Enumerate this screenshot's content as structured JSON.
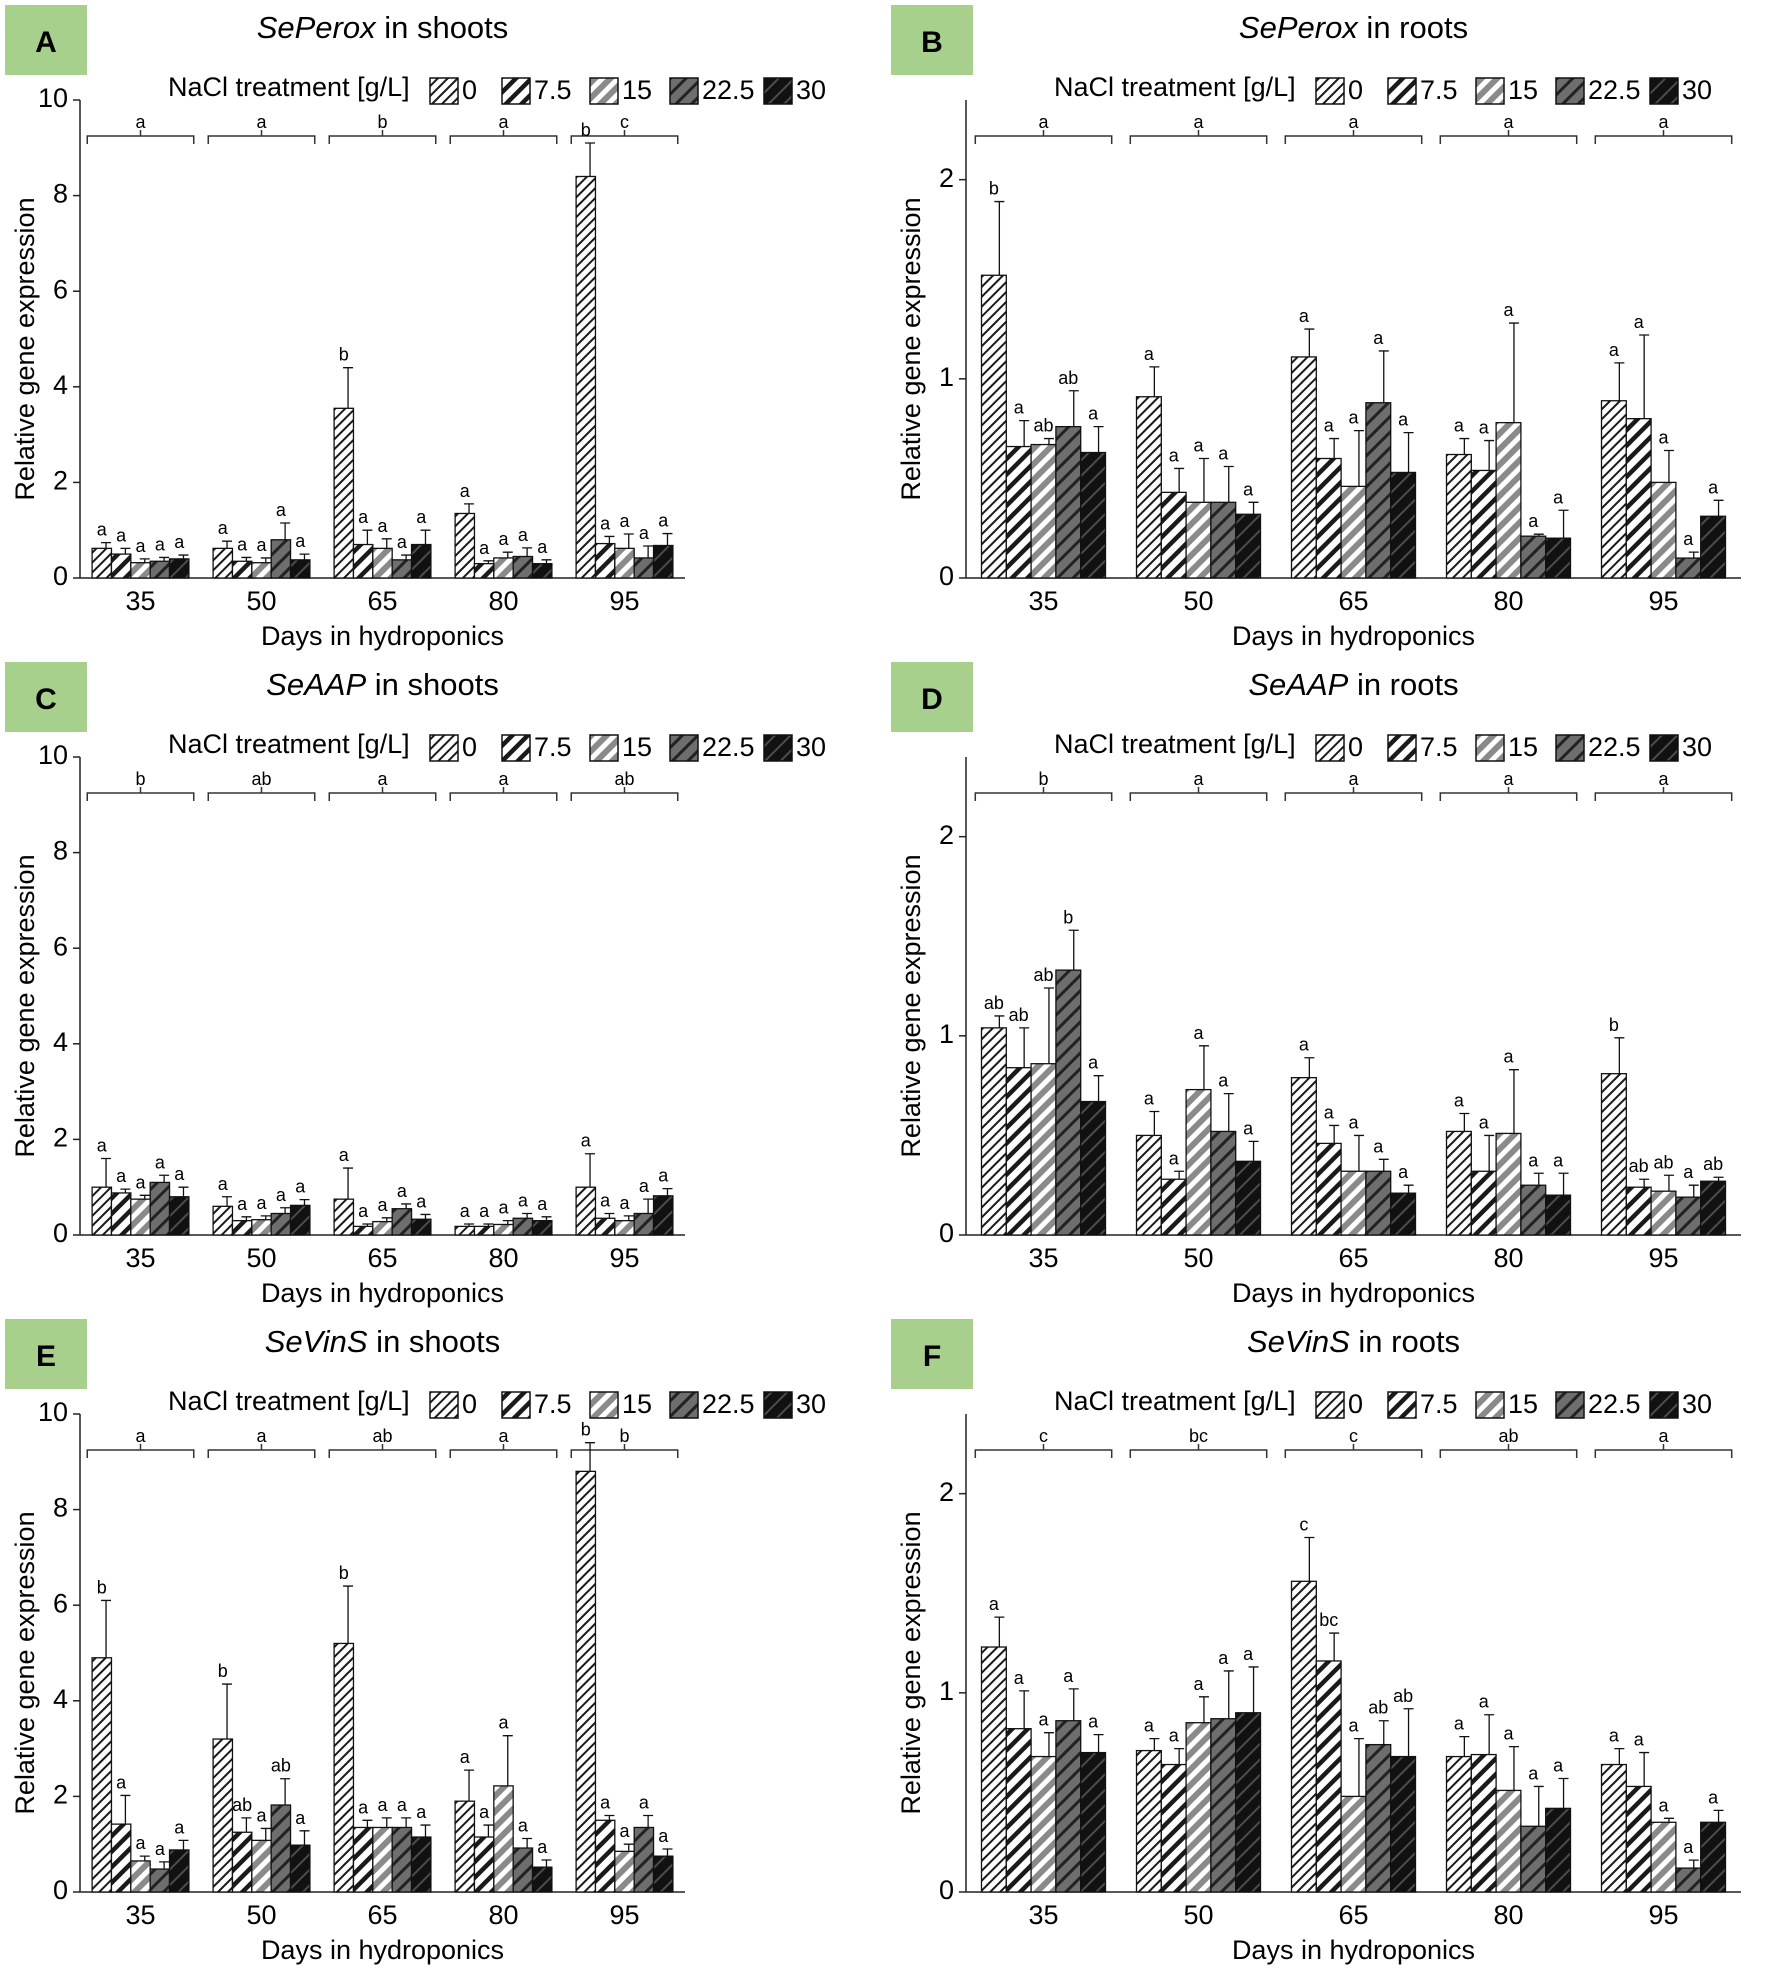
{
  "figure": {
    "x_label": "Days in hydroponics",
    "y_label": "Relative gene expression",
    "legend_title": "NaCl treatment [g/L]",
    "treatments": [
      "0",
      "7.5",
      "15",
      "22.5",
      "30"
    ],
    "days": [
      "35",
      "50",
      "65",
      "80",
      "95"
    ],
    "panel_label_color": "#a8d08d"
  },
  "chart_data": [
    {
      "panel": "A",
      "type": "bar",
      "gene": "SePerox",
      "tissue": "in shoots",
      "categories": [
        "35",
        "50",
        "65",
        "80",
        "95"
      ],
      "ylim": [
        0,
        10
      ],
      "yticks": [
        "0",
        "2",
        "4",
        "6",
        "8",
        "10"
      ],
      "day_letters": [
        "a",
        "a",
        "b",
        "a",
        "c"
      ],
      "series": [
        {
          "name": "0",
          "values": [
            0.62,
            0.62,
            3.55,
            1.35,
            8.4
          ],
          "errors": [
            0.12,
            0.15,
            0.85,
            0.2,
            0.7
          ],
          "letters": [
            "a",
            "a",
            "b",
            "a",
            "b"
          ]
        },
        {
          "name": "7.5",
          "values": [
            0.5,
            0.35,
            0.7,
            0.3,
            0.72
          ],
          "errors": [
            0.12,
            0.08,
            0.3,
            0.06,
            0.15
          ],
          "letters": [
            "a",
            "a",
            "a",
            "a",
            "a"
          ]
        },
        {
          "name": "15",
          "values": [
            0.32,
            0.32,
            0.62,
            0.42,
            0.62
          ],
          "errors": [
            0.08,
            0.1,
            0.2,
            0.12,
            0.3
          ],
          "letters": [
            "a",
            "a",
            "a",
            "a",
            "a"
          ]
        },
        {
          "name": "22.5",
          "values": [
            0.35,
            0.8,
            0.38,
            0.45,
            0.42
          ],
          "errors": [
            0.08,
            0.35,
            0.1,
            0.18,
            0.25
          ],
          "letters": [
            "a",
            "a",
            "a",
            "a",
            "a"
          ]
        },
        {
          "name": "30",
          "values": [
            0.4,
            0.38,
            0.7,
            0.3,
            0.68
          ],
          "errors": [
            0.08,
            0.12,
            0.3,
            0.08,
            0.25
          ],
          "letters": [
            "a",
            "a",
            "a",
            "a",
            "a"
          ]
        }
      ]
    },
    {
      "panel": "B",
      "type": "bar",
      "gene": "SePerox",
      "tissue": "in roots",
      "categories": [
        "35",
        "50",
        "65",
        "80",
        "95"
      ],
      "ylim": [
        0,
        2.4
      ],
      "yticks": [
        "0",
        "1",
        "2"
      ],
      "day_letters": [
        "a",
        "a",
        "a",
        "a",
        "a"
      ],
      "series": [
        {
          "name": "0",
          "values": [
            1.52,
            0.91,
            1.11,
            0.62,
            0.89
          ],
          "errors": [
            0.37,
            0.15,
            0.14,
            0.08,
            0.19
          ],
          "letters": [
            "b",
            "a",
            "a",
            "a",
            "a"
          ]
        },
        {
          "name": "7.5",
          "values": [
            0.66,
            0.43,
            0.6,
            0.54,
            0.8
          ],
          "errors": [
            0.13,
            0.12,
            0.1,
            0.15,
            0.42
          ],
          "letters": [
            "a",
            "a",
            "a",
            "a",
            "a"
          ]
        },
        {
          "name": "15",
          "values": [
            0.67,
            0.38,
            0.46,
            0.78,
            0.48
          ],
          "errors": [
            0.03,
            0.22,
            0.28,
            0.5,
            0.16
          ],
          "letters": [
            "ab",
            "a",
            "a",
            "a",
            "a"
          ]
        },
        {
          "name": "22.5",
          "values": [
            0.76,
            0.38,
            0.88,
            0.21,
            0.1
          ],
          "errors": [
            0.18,
            0.18,
            0.26,
            0.01,
            0.03
          ],
          "letters": [
            "ab",
            "a",
            "a",
            "a",
            "a"
          ]
        },
        {
          "name": "30",
          "values": [
            0.63,
            0.32,
            0.53,
            0.2,
            0.31
          ],
          "errors": [
            0.13,
            0.06,
            0.2,
            0.14,
            0.08
          ],
          "letters": [
            "a",
            "a",
            "a",
            "a",
            "a"
          ]
        }
      ]
    },
    {
      "panel": "C",
      "type": "bar",
      "gene": "SeAAP",
      "tissue": "in shoots",
      "categories": [
        "35",
        "50",
        "65",
        "80",
        "95"
      ],
      "ylim": [
        0,
        10
      ],
      "yticks": [
        "0",
        "2",
        "4",
        "6",
        "8",
        "10"
      ],
      "day_letters": [
        "b",
        "ab",
        "a",
        "a",
        "ab"
      ],
      "series": [
        {
          "name": "0",
          "values": [
            1.0,
            0.6,
            0.75,
            0.18,
            1.0
          ],
          "errors": [
            0.6,
            0.2,
            0.65,
            0.05,
            0.7
          ],
          "letters": [
            "a",
            "a",
            "a",
            "a",
            "a"
          ]
        },
        {
          "name": "7.5",
          "values": [
            0.88,
            0.3,
            0.18,
            0.18,
            0.35
          ],
          "errors": [
            0.08,
            0.08,
            0.05,
            0.05,
            0.1
          ],
          "letters": [
            "a",
            "a",
            "a",
            "a",
            "a"
          ]
        },
        {
          "name": "15",
          "values": [
            0.75,
            0.32,
            0.28,
            0.22,
            0.3
          ],
          "errors": [
            0.08,
            0.08,
            0.08,
            0.08,
            0.1
          ],
          "letters": [
            "a",
            "a",
            "a",
            "a",
            "a"
          ]
        },
        {
          "name": "22.5",
          "values": [
            1.1,
            0.45,
            0.55,
            0.35,
            0.45
          ],
          "errors": [
            0.15,
            0.12,
            0.1,
            0.1,
            0.3
          ],
          "letters": [
            "a",
            "a",
            "a",
            "a",
            "a"
          ]
        },
        {
          "name": "30",
          "values": [
            0.8,
            0.62,
            0.33,
            0.3,
            0.82
          ],
          "errors": [
            0.2,
            0.12,
            0.1,
            0.08,
            0.15
          ],
          "letters": [
            "a",
            "a",
            "a",
            "a",
            "a"
          ]
        }
      ]
    },
    {
      "panel": "D",
      "type": "bar",
      "gene": "SeAAP",
      "tissue": "in roots",
      "categories": [
        "35",
        "50",
        "65",
        "80",
        "95"
      ],
      "ylim": [
        0,
        2.4
      ],
      "yticks": [
        "0",
        "1",
        "2"
      ],
      "day_letters": [
        "b",
        "a",
        "a",
        "a",
        "a"
      ],
      "series": [
        {
          "name": "0",
          "values": [
            1.04,
            0.5,
            0.79,
            0.52,
            0.81
          ],
          "errors": [
            0.06,
            0.12,
            0.1,
            0.09,
            0.18
          ],
          "letters": [
            "ab",
            "a",
            "a",
            "a",
            "b"
          ]
        },
        {
          "name": "7.5",
          "values": [
            0.84,
            0.28,
            0.46,
            0.32,
            0.24
          ],
          "errors": [
            0.2,
            0.04,
            0.09,
            0.18,
            0.04
          ],
          "letters": [
            "ab",
            "a",
            "a",
            "a",
            "ab"
          ]
        },
        {
          "name": "15",
          "values": [
            0.86,
            0.73,
            0.32,
            0.51,
            0.22
          ],
          "errors": [
            0.38,
            0.22,
            0.18,
            0.32,
            0.08
          ],
          "letters": [
            "ab",
            "a",
            "a",
            "a",
            "ab"
          ]
        },
        {
          "name": "22.5",
          "values": [
            1.33,
            0.52,
            0.32,
            0.25,
            0.19
          ],
          "errors": [
            0.2,
            0.19,
            0.06,
            0.06,
            0.06
          ],
          "letters": [
            "b",
            "a",
            "a",
            "a",
            "a"
          ]
        },
        {
          "name": "30",
          "values": [
            0.67,
            0.37,
            0.21,
            0.2,
            0.27
          ],
          "errors": [
            0.13,
            0.1,
            0.04,
            0.11,
            0.02
          ],
          "letters": [
            "a",
            "a",
            "a",
            "a",
            "ab"
          ]
        }
      ]
    },
    {
      "panel": "E",
      "type": "bar",
      "gene": "SeVinS",
      "tissue": "in shoots",
      "categories": [
        "35",
        "50",
        "65",
        "80",
        "95"
      ],
      "ylim": [
        0,
        10
      ],
      "yticks": [
        "0",
        "2",
        "4",
        "6",
        "8",
        "10"
      ],
      "day_letters": [
        "a",
        "a",
        "ab",
        "a",
        "b"
      ],
      "series": [
        {
          "name": "0",
          "values": [
            4.9,
            3.2,
            5.2,
            1.9,
            8.8
          ],
          "errors": [
            1.2,
            1.15,
            1.2,
            0.65,
            0.6
          ],
          "letters": [
            "b",
            "b",
            "b",
            "a",
            "b"
          ]
        },
        {
          "name": "7.5",
          "values": [
            1.42,
            1.25,
            1.35,
            1.15,
            1.5
          ],
          "errors": [
            0.6,
            0.3,
            0.15,
            0.25,
            0.1
          ],
          "letters": [
            "a",
            "ab",
            "a",
            "a",
            "a"
          ]
        },
        {
          "name": "15",
          "values": [
            0.65,
            1.08,
            1.35,
            2.22,
            0.85
          ],
          "errors": [
            0.1,
            0.25,
            0.2,
            1.05,
            0.15
          ],
          "letters": [
            "a",
            "a",
            "a",
            "a",
            "a"
          ]
        },
        {
          "name": "22.5",
          "values": [
            0.48,
            1.82,
            1.35,
            0.92,
            1.35
          ],
          "errors": [
            0.15,
            0.55,
            0.2,
            0.2,
            0.25
          ],
          "letters": [
            "a",
            "ab",
            "a",
            "a",
            "a"
          ]
        },
        {
          "name": "30",
          "values": [
            0.88,
            0.98,
            1.15,
            0.52,
            0.75
          ],
          "errors": [
            0.2,
            0.3,
            0.25,
            0.15,
            0.15
          ],
          "letters": [
            "a",
            "a",
            "a",
            "a",
            "a"
          ]
        }
      ]
    },
    {
      "panel": "F",
      "type": "bar",
      "gene": "SeVinS",
      "tissue": "in roots",
      "categories": [
        "35",
        "50",
        "65",
        "80",
        "95"
      ],
      "ylim": [
        0,
        2.4
      ],
      "yticks": [
        "0",
        "1",
        "2"
      ],
      "day_letters": [
        "c",
        "bc",
        "c",
        "ab",
        "a"
      ],
      "series": [
        {
          "name": "0",
          "values": [
            1.23,
            0.71,
            1.56,
            0.68,
            0.64
          ],
          "errors": [
            0.15,
            0.06,
            0.22,
            0.1,
            0.08
          ],
          "letters": [
            "a",
            "a",
            "c",
            "a",
            "a"
          ]
        },
        {
          "name": "7.5",
          "values": [
            0.82,
            0.64,
            1.16,
            0.69,
            0.53
          ],
          "errors": [
            0.19,
            0.08,
            0.14,
            0.2,
            0.17
          ],
          "letters": [
            "a",
            "a",
            "bc",
            "a",
            "a"
          ]
        },
        {
          "name": "15",
          "values": [
            0.68,
            0.85,
            0.48,
            0.51,
            0.35
          ],
          "errors": [
            0.12,
            0.13,
            0.29,
            0.22,
            0.02
          ],
          "letters": [
            "a",
            "a",
            "a",
            "a",
            "a"
          ]
        },
        {
          "name": "22.5",
          "values": [
            0.86,
            0.87,
            0.74,
            0.33,
            0.12
          ],
          "errors": [
            0.16,
            0.24,
            0.12,
            0.2,
            0.04
          ],
          "letters": [
            "a",
            "a",
            "ab",
            "a",
            "a"
          ]
        },
        {
          "name": "30",
          "values": [
            0.7,
            0.9,
            0.68,
            0.42,
            0.35
          ],
          "errors": [
            0.09,
            0.23,
            0.24,
            0.15,
            0.06
          ],
          "letters": [
            "a",
            "a",
            "ab",
            "a",
            "a"
          ]
        }
      ]
    }
  ]
}
